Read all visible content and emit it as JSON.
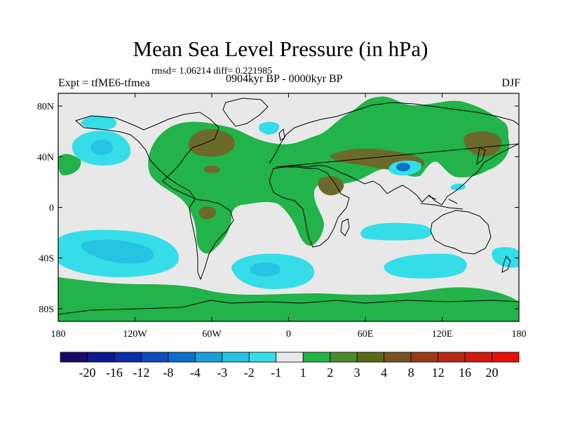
{
  "chart_data": {
    "type": "contour-map",
    "title": "Mean Sea Level Pressure (in hPa)",
    "subtitle": "rmsd= 1.06214 diff= 0.221985",
    "left_label": "Expt = tfME6-tfmea",
    "center_label": "0904kyr BP - 0000kyr BP",
    "right_label": "DJF",
    "x_ticks": [
      -180,
      -120,
      -60,
      0,
      60,
      120,
      180
    ],
    "x_tick_labels": [
      "180",
      "120W",
      "60W",
      "0",
      "60E",
      "120E",
      "180"
    ],
    "y_ticks": [
      80,
      40,
      0,
      -40,
      -80
    ],
    "y_tick_labels": [
      "80N",
      "40N",
      "0",
      "40S",
      "80S"
    ],
    "xlim": [
      -180,
      180
    ],
    "ylim": [
      -90,
      90
    ],
    "colorbar": {
      "levels": [
        "-20",
        "-16",
        "-12",
        "-8",
        "-4",
        "-3",
        "-2",
        "-1",
        "1",
        "2",
        "3",
        "4",
        "8",
        "12",
        "16",
        "20"
      ],
      "colors": [
        "#1a0a6b",
        "#0d1a8f",
        "#0b2ea6",
        "#0b4cb8",
        "#0b70c8",
        "#1a9fd8",
        "#27c3e3",
        "#35dde8",
        "#e8e8e8",
        "#22b34a",
        "#4a8a2a",
        "#5a6a1a",
        "#7a5220",
        "#9a3a18",
        "#b82814",
        "#d01a10",
        "#e81008"
      ]
    },
    "regions": [
      {
        "name": "N. Pacific low anomaly",
        "lon": -145,
        "lat": 45,
        "level": -3
      },
      {
        "name": "N. Pacific low anomaly core",
        "lon": -145,
        "lat": 45,
        "level": -4
      },
      {
        "name": "S. Pacific low anomaly",
        "lon": -145,
        "lat": -35,
        "level": -3
      },
      {
        "name": "S. Pacific low anomaly core",
        "lon": -140,
        "lat": -35,
        "level": -4
      },
      {
        "name": "S. Atlantic low anomaly",
        "lon": -12,
        "lat": -50,
        "level": -3
      },
      {
        "name": "S. Atlantic low anomaly core",
        "lon": -15,
        "lat": -52,
        "level": -4
      },
      {
        "name": "S. Indian low anomaly",
        "lon": 92,
        "lat": -45,
        "level": -2
      },
      {
        "name": "Tibet low anomaly",
        "lon": 92,
        "lat": 33,
        "level": -4
      },
      {
        "name": "N. America / N. Atlantic high anomaly",
        "lon": -70,
        "lat": 45,
        "level": 2
      },
      {
        "name": "Siberia high anomaly",
        "lon": 70,
        "lat": 50,
        "level": 2
      },
      {
        "name": "E. Asia / Kuroshio high anomaly",
        "lon": 150,
        "lat": 45,
        "level": 3
      },
      {
        "name": "Antarctic high anomaly",
        "lon": 0,
        "lat": -78,
        "level": 2
      }
    ]
  }
}
